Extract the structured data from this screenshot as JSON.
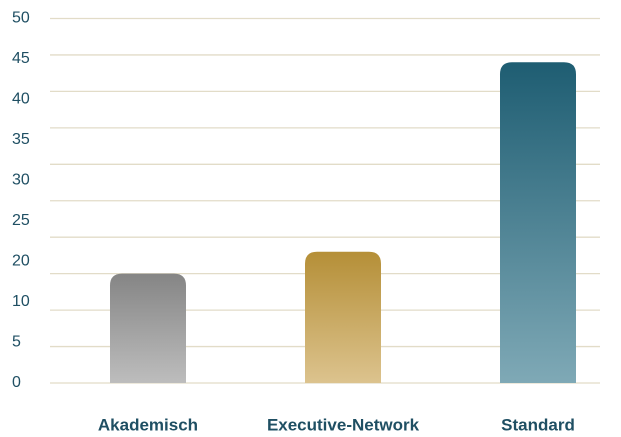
{
  "chart_data": {
    "type": "bar",
    "categories": [
      "Akademisch",
      "Executive-Network",
      "Standard"
    ],
    "values": [
      15,
      18,
      44
    ],
    "colors": [
      [
        "#858585",
        "#bdbdbd"
      ],
      [
        "#b58f37",
        "#dcc38e"
      ],
      [
        "#1e5d72",
        "#7fa9b6"
      ]
    ],
    "ylim": [
      0,
      50
    ],
    "ygrid": [
      0,
      5,
      10,
      15,
      20,
      25,
      30,
      35,
      40,
      45,
      50
    ],
    "yticks": [
      0,
      5,
      10,
      20,
      25,
      30,
      35,
      40,
      45,
      50
    ],
    "grid": true
  }
}
